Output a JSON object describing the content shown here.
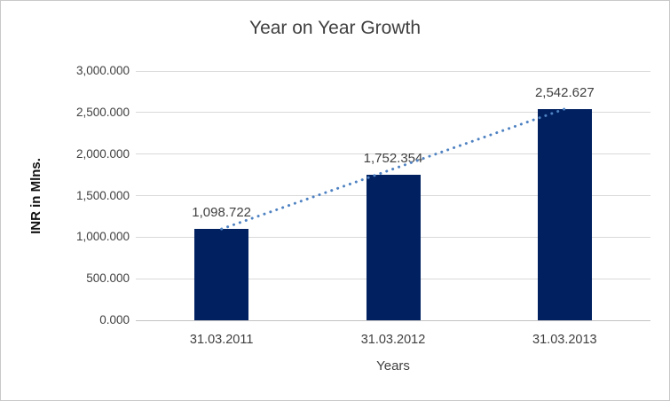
{
  "chart_data": {
    "type": "bar",
    "title": "Year on Year Growth",
    "xlabel": "Years",
    "ylabel": "INR in Mlns.",
    "categories": [
      "31.03.2011",
      "31.03.2012",
      "31.03.2013"
    ],
    "values": [
      1098.722,
      1752.354,
      2542.627
    ],
    "data_labels": [
      "1,098.722",
      "1,752.354",
      "2,542.627"
    ],
    "ylim": [
      0,
      3000
    ],
    "ytick_interval": 500,
    "ytick_labels": [
      "0.000",
      "500.000",
      "1,000.000",
      "1,500.000",
      "2,000.000",
      "2,500.000",
      "3,000.000"
    ],
    "grid": true,
    "legend": false,
    "trendline": {
      "type": "linear",
      "style": "dotted",
      "from_category": "31.03.2011",
      "to_category": "31.03.2013"
    },
    "colors": {
      "bar": "#002060",
      "trendline": "#4f82c2",
      "gridline": "#d9d9d9",
      "axis_line": "#c3c3c3",
      "text": "#404040",
      "title_text": "#3f3f3f",
      "border": "#c9c9c9",
      "background": "#ffffff"
    }
  }
}
